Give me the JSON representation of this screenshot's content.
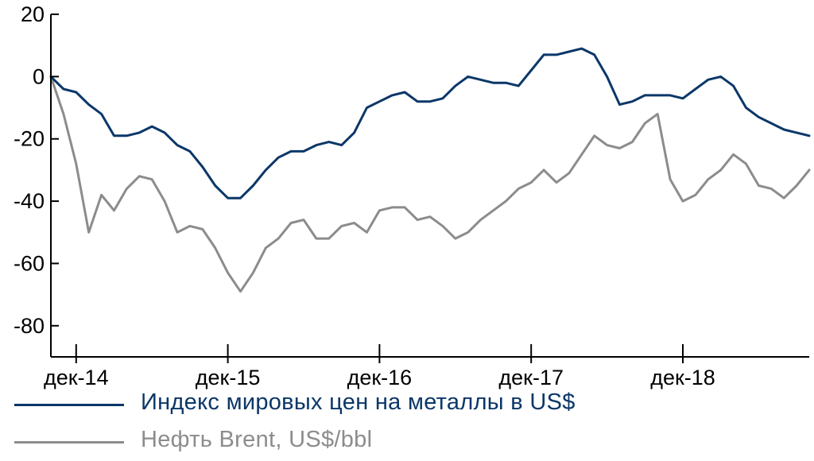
{
  "chart_data": {
    "type": "line",
    "title": "",
    "xlabel": "",
    "ylabel": "",
    "ylim": [
      -90,
      20
    ],
    "yticks": [
      20,
      0,
      -20,
      -40,
      -60,
      -80
    ],
    "x_tick_labels": [
      "дек-14",
      "дек-15",
      "дек-16",
      "дек-17",
      "дек-18"
    ],
    "x_ticks": [
      "2014-12",
      "2015-12",
      "2016-12",
      "2017-12",
      "2018-12"
    ],
    "x_range": [
      "2014-10",
      "2019-10"
    ],
    "grid": false,
    "legend_position": "bottom",
    "series": [
      {
        "name": "Индекс мировых цен на металлы в US$",
        "color": "#0b3769",
        "points": [
          [
            "2014-10",
            0
          ],
          [
            "2014-11",
            -4
          ],
          [
            "2014-12",
            -5
          ],
          [
            "2015-01",
            -9
          ],
          [
            "2015-02",
            -12
          ],
          [
            "2015-03",
            -19
          ],
          [
            "2015-04",
            -19
          ],
          [
            "2015-05",
            -18
          ],
          [
            "2015-06",
            -16
          ],
          [
            "2015-07",
            -18
          ],
          [
            "2015-08",
            -22
          ],
          [
            "2015-09",
            -24
          ],
          [
            "2015-10",
            -29
          ],
          [
            "2015-11",
            -35
          ],
          [
            "2015-12",
            -39
          ],
          [
            "2016-01",
            -39
          ],
          [
            "2016-02",
            -35
          ],
          [
            "2016-03",
            -30
          ],
          [
            "2016-04",
            -26
          ],
          [
            "2016-05",
            -24
          ],
          [
            "2016-06",
            -24
          ],
          [
            "2016-07",
            -22
          ],
          [
            "2016-08",
            -21
          ],
          [
            "2016-09",
            -22
          ],
          [
            "2016-10",
            -18
          ],
          [
            "2016-11",
            -10
          ],
          [
            "2016-12",
            -8
          ],
          [
            "2017-01",
            -6
          ],
          [
            "2017-02",
            -5
          ],
          [
            "2017-03",
            -8
          ],
          [
            "2017-04",
            -8
          ],
          [
            "2017-05",
            -7
          ],
          [
            "2017-06",
            -3
          ],
          [
            "2017-07",
            0
          ],
          [
            "2017-08",
            -1
          ],
          [
            "2017-09",
            -2
          ],
          [
            "2017-10",
            -2
          ],
          [
            "2017-11",
            -3
          ],
          [
            "2017-12",
            2
          ],
          [
            "2018-01",
            7
          ],
          [
            "2018-02",
            7
          ],
          [
            "2018-03",
            8
          ],
          [
            "2018-04",
            9
          ],
          [
            "2018-05",
            7
          ],
          [
            "2018-06",
            0
          ],
          [
            "2018-07",
            -9
          ],
          [
            "2018-08",
            -8
          ],
          [
            "2018-09",
            -6
          ],
          [
            "2018-10",
            -6
          ],
          [
            "2018-11",
            -6
          ],
          [
            "2018-12",
            -7
          ],
          [
            "2019-01",
            -4
          ],
          [
            "2019-02",
            -1
          ],
          [
            "2019-03",
            0
          ],
          [
            "2019-04",
            -3
          ],
          [
            "2019-05",
            -10
          ],
          [
            "2019-06",
            -13
          ],
          [
            "2019-07",
            -15
          ],
          [
            "2019-08",
            -17
          ],
          [
            "2019-09",
            -18
          ],
          [
            "2019-10",
            -19
          ]
        ]
      },
      {
        "name": "Нефть Brent, US$/bbl",
        "color": "#8c8c8c",
        "points": [
          [
            "2014-10",
            0
          ],
          [
            "2014-11",
            -12
          ],
          [
            "2014-12",
            -28
          ],
          [
            "2015-01",
            -50
          ],
          [
            "2015-02",
            -38
          ],
          [
            "2015-03",
            -43
          ],
          [
            "2015-04",
            -36
          ],
          [
            "2015-05",
            -32
          ],
          [
            "2015-06",
            -33
          ],
          [
            "2015-07",
            -40
          ],
          [
            "2015-08",
            -50
          ],
          [
            "2015-09",
            -48
          ],
          [
            "2015-10",
            -49
          ],
          [
            "2015-11",
            -55
          ],
          [
            "2015-12",
            -63
          ],
          [
            "2016-01",
            -69
          ],
          [
            "2016-02",
            -63
          ],
          [
            "2016-03",
            -55
          ],
          [
            "2016-04",
            -52
          ],
          [
            "2016-05",
            -47
          ],
          [
            "2016-06",
            -46
          ],
          [
            "2016-07",
            -52
          ],
          [
            "2016-08",
            -52
          ],
          [
            "2016-09",
            -48
          ],
          [
            "2016-10",
            -47
          ],
          [
            "2016-11",
            -50
          ],
          [
            "2016-12",
            -43
          ],
          [
            "2017-01",
            -42
          ],
          [
            "2017-02",
            -42
          ],
          [
            "2017-03",
            -46
          ],
          [
            "2017-04",
            -45
          ],
          [
            "2017-05",
            -48
          ],
          [
            "2017-06",
            -52
          ],
          [
            "2017-07",
            -50
          ],
          [
            "2017-08",
            -46
          ],
          [
            "2017-09",
            -43
          ],
          [
            "2017-10",
            -40
          ],
          [
            "2017-11",
            -36
          ],
          [
            "2017-12",
            -34
          ],
          [
            "2018-01",
            -30
          ],
          [
            "2018-02",
            -34
          ],
          [
            "2018-03",
            -31
          ],
          [
            "2018-04",
            -25
          ],
          [
            "2018-05",
            -19
          ],
          [
            "2018-06",
            -22
          ],
          [
            "2018-07",
            -23
          ],
          [
            "2018-08",
            -21
          ],
          [
            "2018-09",
            -15
          ],
          [
            "2018-10",
            -12
          ],
          [
            "2018-11",
            -33
          ],
          [
            "2018-12",
            -40
          ],
          [
            "2019-01",
            -38
          ],
          [
            "2019-02",
            -33
          ],
          [
            "2019-03",
            -30
          ],
          [
            "2019-04",
            -25
          ],
          [
            "2019-05",
            -28
          ],
          [
            "2019-06",
            -35
          ],
          [
            "2019-07",
            -36
          ],
          [
            "2019-08",
            -39
          ],
          [
            "2019-09",
            -35
          ],
          [
            "2019-10",
            -30
          ]
        ]
      }
    ]
  }
}
